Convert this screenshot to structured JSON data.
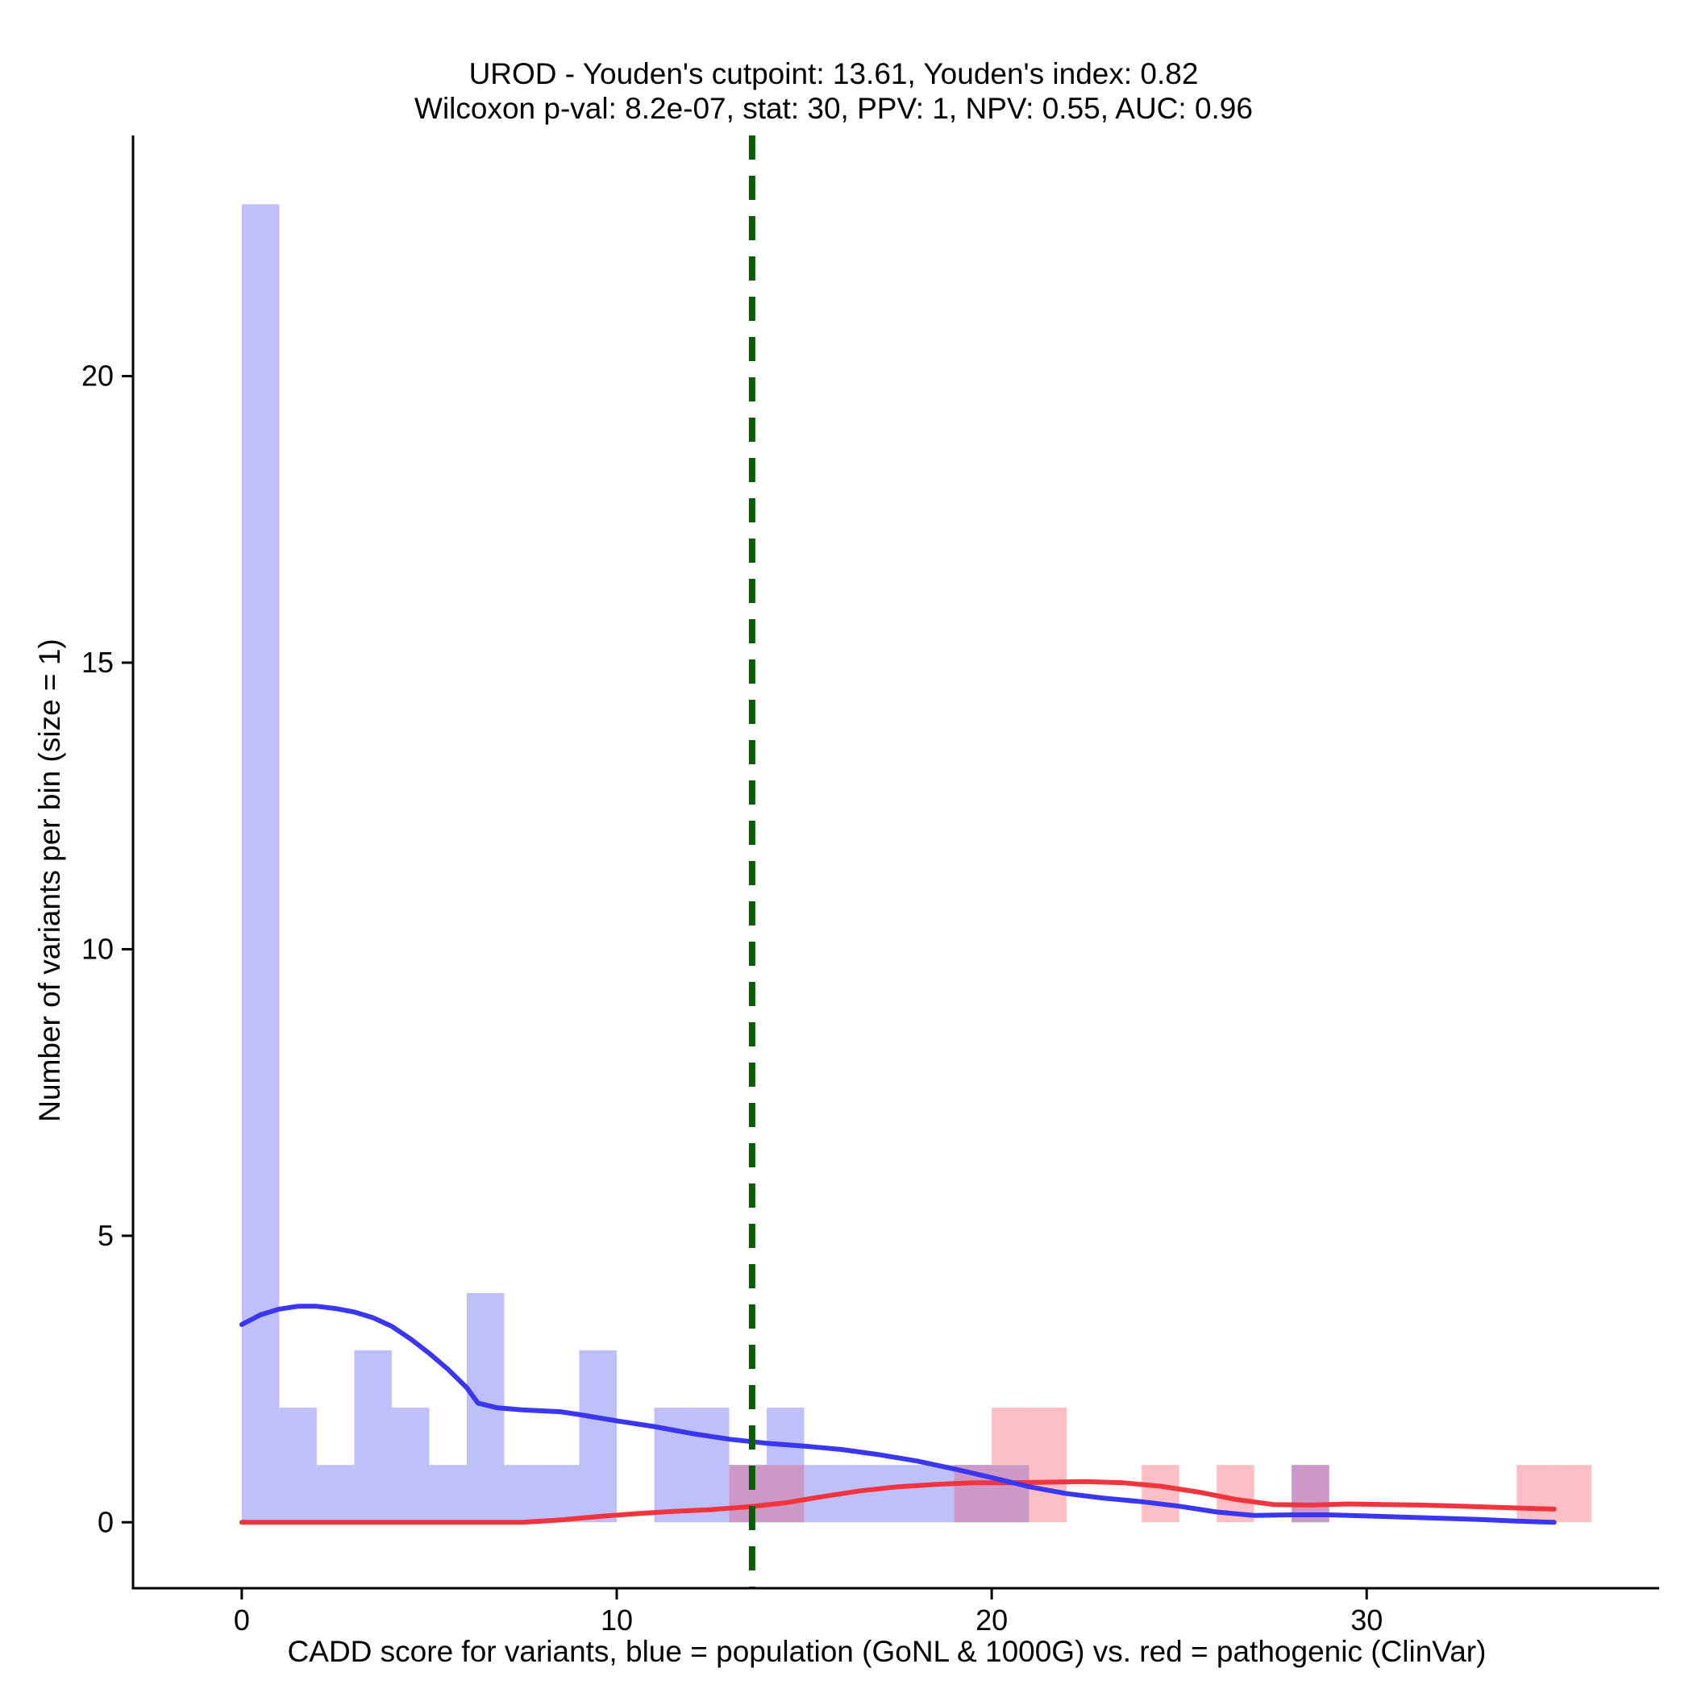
{
  "chart_data": {
    "type": "histogram",
    "title_line1": "UROD - Youden's cutpoint: 13.61, Youden's index: 0.82",
    "title_line2": "Wilcoxon p-val: 8.2e-07, stat: 30, PPV: 1, NPV: 0.55, AUC: 0.96",
    "xlabel": "CADD score for variants, blue = population (GoNL & 1000G) vs. red = pathogenic (ClinVar)",
    "ylabel": "Number of variants per bin (size = 1)",
    "xlim": [
      -2.9,
      37.8
    ],
    "ylim": [
      -1.15,
      24.2
    ],
    "x_ticks": [
      0,
      10,
      20,
      30
    ],
    "x_tick_labels": [
      "0",
      "10",
      "20",
      "30"
    ],
    "y_ticks": [
      0,
      5,
      10,
      15,
      20
    ],
    "y_tick_labels": [
      "0",
      "5",
      "10",
      "15",
      "20"
    ],
    "bin_width": 1,
    "cutpoint": 13.61,
    "colors": {
      "population_bar": "#bfbff9",
      "pathogenic_bar": "#fdbfc3",
      "overlap_bar": "#cc98c5",
      "population_line": "#3a36f2",
      "pathogenic_line": "#f2343f",
      "cutpoint_line": "#0b5b0b"
    },
    "series": [
      {
        "name": "population (GoNL & 1000G)",
        "bins": [
          {
            "x": 0,
            "count": 23
          },
          {
            "x": 1,
            "count": 2
          },
          {
            "x": 2,
            "count": 1
          },
          {
            "x": 3,
            "count": 3
          },
          {
            "x": 4,
            "count": 2
          },
          {
            "x": 5,
            "count": 1
          },
          {
            "x": 6,
            "count": 4
          },
          {
            "x": 7,
            "count": 1
          },
          {
            "x": 8,
            "count": 1
          },
          {
            "x": 9,
            "count": 3
          },
          {
            "x": 11,
            "count": 2
          },
          {
            "x": 12,
            "count": 2
          },
          {
            "x": 13,
            "count": 1
          },
          {
            "x": 14,
            "count": 2
          },
          {
            "x": 15,
            "count": 1
          },
          {
            "x": 16,
            "count": 1
          },
          {
            "x": 17,
            "count": 1
          },
          {
            "x": 18,
            "count": 1
          },
          {
            "x": 19,
            "count": 1
          },
          {
            "x": 20,
            "count": 1
          },
          {
            "x": 28,
            "count": 1
          }
        ],
        "density": [
          [
            0,
            3.45
          ],
          [
            0.5,
            3.62
          ],
          [
            1,
            3.72
          ],
          [
            1.5,
            3.77
          ],
          [
            2,
            3.77
          ],
          [
            2.5,
            3.73
          ],
          [
            3,
            3.67
          ],
          [
            3.5,
            3.57
          ],
          [
            4,
            3.42
          ],
          [
            4.5,
            3.2
          ],
          [
            5,
            2.95
          ],
          [
            5.5,
            2.67
          ],
          [
            6,
            2.35
          ],
          [
            6.3,
            2.08
          ],
          [
            6.8,
            2.0
          ],
          [
            7.5,
            1.96
          ],
          [
            8.5,
            1.93
          ],
          [
            9,
            1.88
          ],
          [
            10,
            1.77
          ],
          [
            11,
            1.67
          ],
          [
            12,
            1.55
          ],
          [
            13,
            1.45
          ],
          [
            14,
            1.38
          ],
          [
            15,
            1.33
          ],
          [
            16,
            1.27
          ],
          [
            17,
            1.18
          ],
          [
            18,
            1.07
          ],
          [
            19,
            0.93
          ],
          [
            20,
            0.78
          ],
          [
            21,
            0.62
          ],
          [
            22,
            0.5
          ],
          [
            23,
            0.42
          ],
          [
            24,
            0.36
          ],
          [
            25,
            0.28
          ],
          [
            26,
            0.18
          ],
          [
            27,
            0.12
          ],
          [
            28,
            0.13
          ],
          [
            29,
            0.13
          ],
          [
            30,
            0.11
          ],
          [
            31,
            0.09
          ],
          [
            32,
            0.07
          ],
          [
            33,
            0.05
          ],
          [
            34,
            0.02
          ],
          [
            35,
            0.0
          ]
        ]
      },
      {
        "name": "pathogenic (ClinVar)",
        "bins": [
          {
            "x": 13,
            "count": 1
          },
          {
            "x": 14,
            "count": 1
          },
          {
            "x": 19,
            "count": 1
          },
          {
            "x": 20,
            "count": 2
          },
          {
            "x": 21,
            "count": 2
          },
          {
            "x": 24,
            "count": 1
          },
          {
            "x": 26,
            "count": 1
          },
          {
            "x": 28,
            "count": 1
          },
          {
            "x": 34,
            "count": 1
          },
          {
            "x": 35,
            "count": 1
          }
        ],
        "density": [
          [
            0,
            0.0
          ],
          [
            2,
            0.0
          ],
          [
            4,
            0.0
          ],
          [
            6,
            0.0
          ],
          [
            7.5,
            0.0
          ],
          [
            8.5,
            0.04
          ],
          [
            9.5,
            0.1
          ],
          [
            10.5,
            0.15
          ],
          [
            11.5,
            0.19
          ],
          [
            12.5,
            0.22
          ],
          [
            13.5,
            0.27
          ],
          [
            14.5,
            0.34
          ],
          [
            15.5,
            0.45
          ],
          [
            16.5,
            0.55
          ],
          [
            17.5,
            0.62
          ],
          [
            18.5,
            0.66
          ],
          [
            19.5,
            0.69
          ],
          [
            20.5,
            0.69
          ],
          [
            21.5,
            0.7
          ],
          [
            22.5,
            0.71
          ],
          [
            23.5,
            0.69
          ],
          [
            24.5,
            0.63
          ],
          [
            25.5,
            0.53
          ],
          [
            26.5,
            0.4
          ],
          [
            27.5,
            0.31
          ],
          [
            28.5,
            0.3
          ],
          [
            29.5,
            0.32
          ],
          [
            30.5,
            0.31
          ],
          [
            31.5,
            0.3
          ],
          [
            32.5,
            0.28
          ],
          [
            33.5,
            0.26
          ],
          [
            34.5,
            0.24
          ],
          [
            35,
            0.23
          ]
        ]
      }
    ]
  }
}
